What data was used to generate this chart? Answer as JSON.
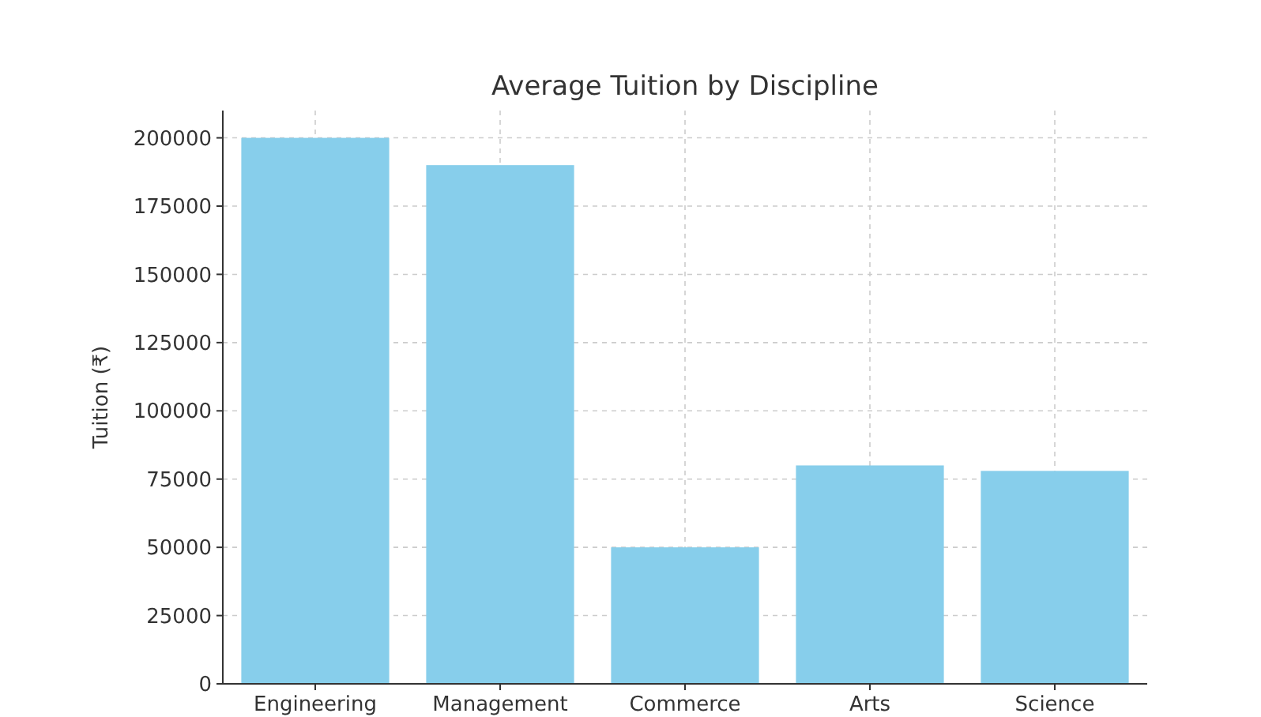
{
  "chart_data": {
    "type": "bar",
    "title": "Average Tuition by Discipline",
    "ylabel": "Tuition (₹)",
    "categories": [
      "Engineering",
      "Management",
      "Commerce",
      "Arts",
      "Science"
    ],
    "values": [
      200000,
      190000,
      50000,
      80000,
      78000
    ],
    "color": "#87ceeb",
    "ylim": [
      0,
      210000
    ],
    "yticks": [
      0,
      25000,
      50000,
      75000,
      100000,
      125000,
      150000,
      175000,
      200000
    ],
    "grid": true
  }
}
